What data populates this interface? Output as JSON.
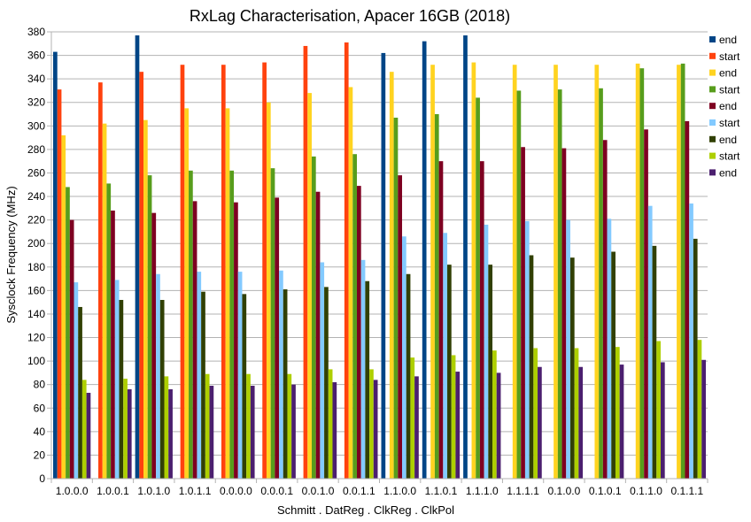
{
  "chart_data": {
    "type": "bar",
    "title": "RxLag Characterisation, Apacer 16GB (2018)",
    "xlabel": "Schmitt . DatReg . ClkReg . ClkPol",
    "ylabel": "Sysclock Frequency (MHz)",
    "ylim": [
      0,
      380
    ],
    "yticks": [
      0,
      20,
      40,
      60,
      80,
      100,
      120,
      140,
      160,
      180,
      200,
      220,
      240,
      260,
      280,
      300,
      320,
      340,
      360,
      380
    ],
    "grid": true,
    "legend_position": "right",
    "categories": [
      "1.0.0.0",
      "1.0.0.1",
      "1.0.1.0",
      "1.0.1.1",
      "0.0.0.0",
      "0.0.0.1",
      "0.0.1.0",
      "0.0.1.1",
      "1.1.0.0",
      "1.1.0.1",
      "1.1.1.0",
      "1.1.1.1",
      "0.1.0.0",
      "0.1.0.1",
      "0.1.1.0",
      "0.1.1.1"
    ],
    "series": [
      {
        "name": "end",
        "color": "#004586",
        "values": [
          363,
          0,
          377,
          0,
          0,
          0,
          0,
          0,
          362,
          372,
          377,
          0,
          0,
          0,
          0,
          0
        ]
      },
      {
        "name": "start",
        "color": "#ff420e",
        "values": [
          331,
          337,
          346,
          352,
          352,
          354,
          368,
          371,
          0,
          0,
          0,
          0,
          0,
          0,
          0,
          0
        ]
      },
      {
        "name": "end",
        "color": "#ffd320",
        "values": [
          292,
          302,
          305,
          315,
          315,
          320,
          328,
          333,
          346,
          352,
          354,
          352,
          352,
          352,
          353,
          352
        ]
      },
      {
        "name": "start",
        "color": "#579d1c",
        "values": [
          248,
          251,
          258,
          262,
          262,
          264,
          274,
          276,
          307,
          310,
          324,
          330,
          331,
          332,
          349,
          353
        ]
      },
      {
        "name": "end",
        "color": "#7e0021",
        "values": [
          220,
          228,
          226,
          236,
          235,
          239,
          244,
          249,
          258,
          270,
          270,
          282,
          281,
          288,
          297,
          304
        ]
      },
      {
        "name": "start",
        "color": "#83caff",
        "values": [
          167,
          169,
          174,
          176,
          176,
          177,
          184,
          186,
          206,
          209,
          216,
          219,
          220,
          221,
          232,
          234
        ]
      },
      {
        "name": "end",
        "color": "#314004",
        "values": [
          146,
          152,
          152,
          159,
          157,
          161,
          163,
          168,
          174,
          182,
          182,
          190,
          188,
          193,
          198,
          204
        ]
      },
      {
        "name": "start",
        "color": "#aecf00",
        "values": [
          84,
          85,
          87,
          89,
          89,
          89,
          93,
          93,
          103,
          105,
          109,
          111,
          111,
          112,
          117,
          118
        ]
      },
      {
        "name": "end",
        "color": "#4b1f6f",
        "values": [
          73,
          76,
          76,
          79,
          79,
          80,
          82,
          84,
          87,
          91,
          90,
          95,
          95,
          97,
          99,
          101
        ]
      }
    ]
  }
}
